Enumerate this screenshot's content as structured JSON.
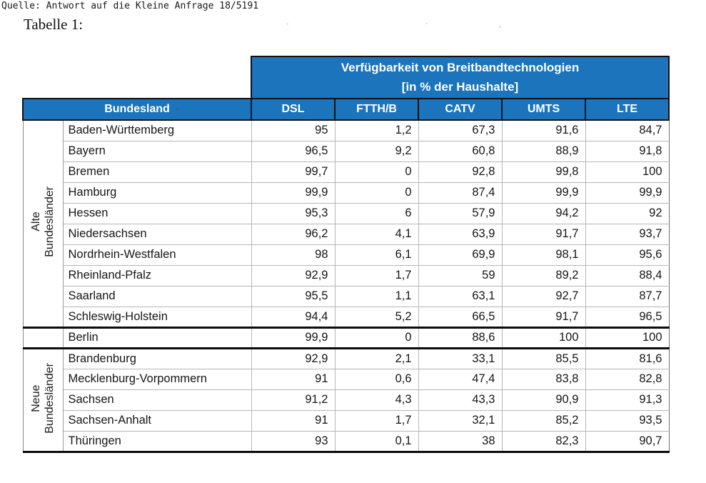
{
  "page": {
    "source_line": "Quelle: Antwort auf die Kleine Anfrage 18/5191",
    "caption": "Tabelle 1:"
  },
  "table": {
    "header": {
      "title_line1": "Verfügbarkeit von Breitbandtechnologien",
      "title_line2": "[in % der Haushalte]",
      "bundesland_label": "Bundesland",
      "columns": [
        "DSL",
        "FTTH/B",
        "CATV",
        "UMTS",
        "LTE"
      ]
    },
    "groups": [
      {
        "id": "alte-bundeslaender",
        "label": [
          "Alte",
          "Bundesländer"
        ],
        "rows": [
          [
            "Baden-Württemberg",
            "95",
            "1,2",
            "67,3",
            "91,6",
            "84,7"
          ],
          [
            "Bayern",
            "96,5",
            "9,2",
            "60,8",
            "88,9",
            "91,8"
          ],
          [
            "Bremen",
            "99,7",
            "0",
            "92,8",
            "99,8",
            "100"
          ],
          [
            "Hamburg",
            "99,9",
            "0",
            "87,4",
            "99,9",
            "99,9"
          ],
          [
            "Hessen",
            "95,3",
            "6",
            "57,9",
            "94,2",
            "92"
          ],
          [
            "Niedersachsen",
            "96,2",
            "4,1",
            "63,9",
            "91,7",
            "93,7"
          ],
          [
            "Nordrhein-Westfalen",
            "98",
            "6,1",
            "69,9",
            "98,1",
            "95,6"
          ],
          [
            "Rheinland-Pfalz",
            "92,9",
            "1,7",
            "59",
            "89,2",
            "88,4"
          ],
          [
            "Saarland",
            "95,5",
            "1,1",
            "63,1",
            "92,7",
            "87,7"
          ],
          [
            "Schleswig-Holstein",
            "94,4",
            "5,2",
            "66,5",
            "91,7",
            "96,5"
          ]
        ]
      },
      {
        "id": "berlin",
        "label": [],
        "rows": [
          [
            "Berlin",
            "99,9",
            "0",
            "88,6",
            "100",
            "100"
          ]
        ]
      },
      {
        "id": "neue-bundeslaender",
        "label": [
          "Neue",
          "Bundesländer"
        ],
        "rows": [
          [
            "Brandenburg",
            "92,9",
            "2,1",
            "33,1",
            "85,5",
            "81,6"
          ],
          [
            "Mecklenburg-Vorpommern",
            "91",
            "0,6",
            "47,4",
            "83,8",
            "82,8"
          ],
          [
            "Sachsen",
            "91,2",
            "4,3",
            "43,3",
            "90,9",
            "91,3"
          ],
          [
            "Sachsen-Anhalt",
            "91",
            "1,7",
            "32,1",
            "85,2",
            "93,5"
          ],
          [
            "Thüringen",
            "93",
            "0,1",
            "38",
            "82,3",
            "90,7"
          ]
        ]
      }
    ],
    "colors": {
      "header_background": "#1b74bc",
      "header_text": "#ffffff",
      "header_border": "#0e1218",
      "grid_line": "#b6b6b6",
      "thick_rule": "#0c0c0c",
      "body_text": "#161616"
    }
  },
  "chart_data": {
    "type": "table",
    "title": "Verfügbarkeit von Breitbandtechnologien [in % der Haushalte]",
    "columns": [
      "Bundesland",
      "DSL",
      "FTTH/B",
      "CATV",
      "UMTS",
      "LTE"
    ],
    "row_groups": [
      {
        "group": "Alte Bundesländer",
        "states": [
          "Baden-Württemberg",
          "Bayern",
          "Bremen",
          "Hamburg",
          "Hessen",
          "Niedersachsen",
          "Nordrhein-Westfalen",
          "Rheinland-Pfalz",
          "Saarland",
          "Schleswig-Holstein"
        ]
      },
      {
        "group": "",
        "states": [
          "Berlin"
        ]
      },
      {
        "group": "Neue Bundesländer",
        "states": [
          "Brandenburg",
          "Mecklenburg-Vorpommern",
          "Sachsen",
          "Sachsen-Anhalt",
          "Thüringen"
        ]
      }
    ],
    "rows": [
      [
        "Baden-Württemberg",
        95,
        1.2,
        67.3,
        91.6,
        84.7
      ],
      [
        "Bayern",
        96.5,
        9.2,
        60.8,
        88.9,
        91.8
      ],
      [
        "Bremen",
        99.7,
        0,
        92.8,
        99.8,
        100
      ],
      [
        "Hamburg",
        99.9,
        0,
        87.4,
        99.9,
        99.9
      ],
      [
        "Hessen",
        95.3,
        6,
        57.9,
        94.2,
        92
      ],
      [
        "Niedersachsen",
        96.2,
        4.1,
        63.9,
        91.7,
        93.7
      ],
      [
        "Nordrhein-Westfalen",
        98,
        6.1,
        69.9,
        98.1,
        95.6
      ],
      [
        "Rheinland-Pfalz",
        92.9,
        1.7,
        59,
        89.2,
        88.4
      ],
      [
        "Saarland",
        95.5,
        1.1,
        63.1,
        92.7,
        87.7
      ],
      [
        "Schleswig-Holstein",
        94.4,
        5.2,
        66.5,
        91.7,
        96.5
      ],
      [
        "Berlin",
        99.9,
        0,
        88.6,
        100,
        100
      ],
      [
        "Brandenburg",
        92.9,
        2.1,
        33.1,
        85.5,
        81.6
      ],
      [
        "Mecklenburg-Vorpommern",
        91,
        0.6,
        47.4,
        83.8,
        82.8
      ],
      [
        "Sachsen",
        91.2,
        4.3,
        43.3,
        90.9,
        91.3
      ],
      [
        "Sachsen-Anhalt",
        91,
        1.7,
        32.1,
        85.2,
        93.5
      ],
      [
        "Thüringen",
        93,
        0.1,
        38,
        82.3,
        90.7
      ]
    ]
  }
}
